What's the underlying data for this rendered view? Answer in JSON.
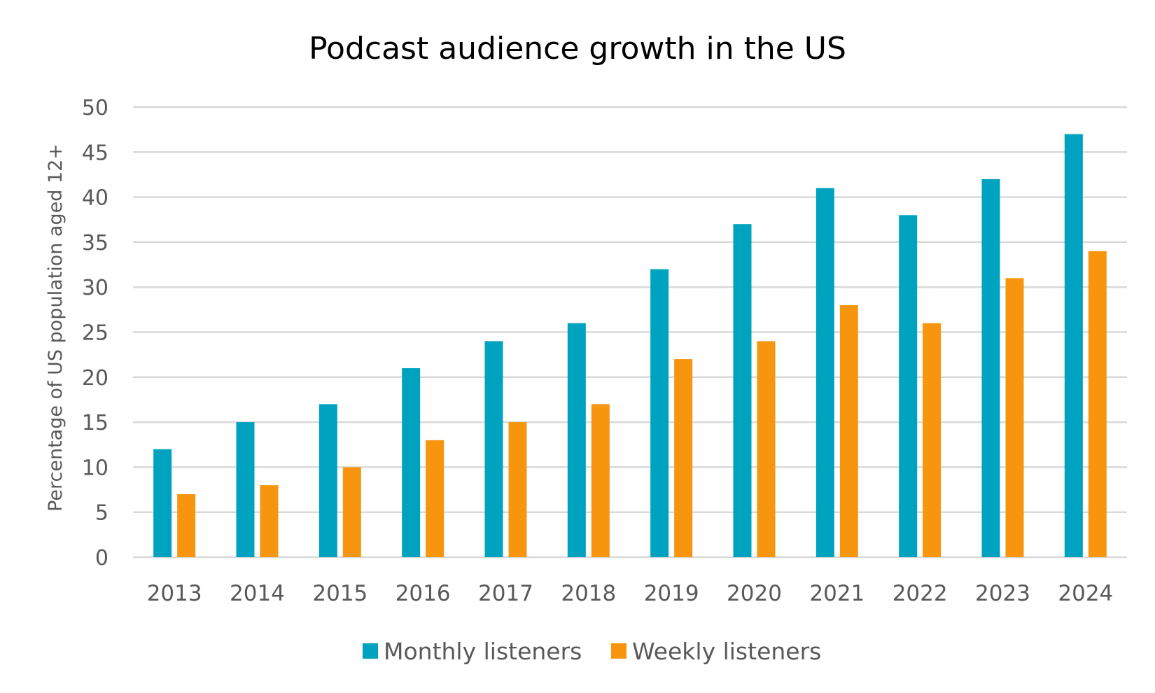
{
  "chart_data": {
    "type": "bar",
    "title": "Podcast audience growth in the US",
    "xlabel": "",
    "ylabel": "Percentage of US population aged 12+",
    "ylim": [
      0,
      50
    ],
    "yticks": [
      0,
      5,
      10,
      15,
      20,
      25,
      30,
      35,
      40,
      45,
      50
    ],
    "grid": true,
    "legend_position": "bottom",
    "categories": [
      "2013",
      "2014",
      "2015",
      "2016",
      "2017",
      "2018",
      "2019",
      "2020",
      "2021",
      "2022",
      "2023",
      "2024"
    ],
    "series": [
      {
        "name": "Monthly listeners",
        "color": "#00A3BF",
        "values": [
          12,
          15,
          17,
          21,
          24,
          26,
          32,
          37,
          41,
          38,
          42,
          47
        ]
      },
      {
        "name": "Weekly listeners",
        "color": "#F7950F",
        "values": [
          7,
          8,
          10,
          13,
          15,
          17,
          22,
          24,
          28,
          26,
          31,
          34
        ]
      }
    ]
  }
}
